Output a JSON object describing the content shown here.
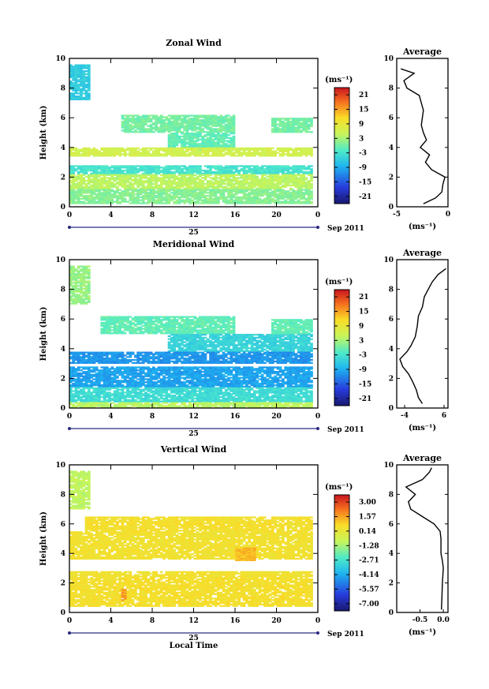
{
  "chart_data": [
    {
      "type": "heatmap",
      "title": "Zonal Wind",
      "ylabel": "Height (km)",
      "xlabel": "",
      "x_ticks": [
        "0",
        "4",
        "8",
        "12",
        "16",
        "20",
        "0"
      ],
      "y_ticks": [
        "0",
        "2",
        "4",
        "6",
        "8",
        "10"
      ],
      "xlim": [
        0,
        24
      ],
      "ylim": [
        0,
        10
      ],
      "date_day": "25",
      "date_month": "Sep 2011",
      "colorbar": {
        "unit": "(ms⁻¹)",
        "ticks": [
          "21",
          "15",
          "9",
          "3",
          "-3",
          "-9",
          "-15",
          "-21"
        ],
        "range": [
          -24,
          24
        ]
      },
      "regions": [
        {
          "x0": 0.0,
          "x1": 1.8,
          "y0": 7.2,
          "y1": 9.6,
          "v": -6
        },
        {
          "x0": 5.0,
          "x1": 16.0,
          "y0": 5.0,
          "y1": 6.2,
          "v": 0
        },
        {
          "x0": 9.5,
          "x1": 16.0,
          "y0": 3.8,
          "y1": 5.0,
          "v": -1
        },
        {
          "x0": 19.5,
          "x1": 23.5,
          "y0": 5.0,
          "y1": 6.0,
          "v": 0
        },
        {
          "x0": 0.0,
          "x1": 23.5,
          "y0": 3.4,
          "y1": 4.0,
          "v": 6
        },
        {
          "x0": 0.0,
          "x1": 23.5,
          "y0": 2.2,
          "y1": 2.8,
          "v": -3
        },
        {
          "x0": 0.0,
          "x1": 23.5,
          "y0": 1.2,
          "y1": 2.2,
          "v": 4
        },
        {
          "x0": 0.0,
          "x1": 23.5,
          "y0": 0.2,
          "y1": 1.2,
          "v": 1
        }
      ],
      "average_profile": {
        "title": "Average",
        "xlabel": "(ms⁻¹)",
        "x_ticks": [
          "-5",
          "0"
        ],
        "xlim": [
          -5,
          0
        ],
        "height": [
          0.2,
          0.6,
          1.0,
          1.5,
          2.0,
          2.5,
          3.0,
          3.5,
          4.0,
          4.5,
          5.0,
          5.5,
          6.0,
          6.5,
          7.0,
          7.5,
          8.0,
          8.5,
          9.0,
          9.3
        ],
        "values": [
          -2.4,
          -1.2,
          -0.6,
          -0.5,
          -0.3,
          -1.6,
          -2.2,
          -1.8,
          -2.7,
          -2.1,
          -2.4,
          -2.6,
          -2.5,
          -2.4,
          -2.6,
          -2.8,
          -4.0,
          -4.3,
          -3.3,
          -4.6
        ]
      }
    },
    {
      "type": "heatmap",
      "title": "Meridional Wind",
      "ylabel": "Height (km)",
      "xlabel": "",
      "x_ticks": [
        "0",
        "4",
        "8",
        "12",
        "16",
        "20",
        "0"
      ],
      "y_ticks": [
        "0",
        "2",
        "4",
        "6",
        "8",
        "10"
      ],
      "xlim": [
        0,
        24
      ],
      "ylim": [
        0,
        10
      ],
      "date_day": "25",
      "date_month": "Sep 2011",
      "colorbar": {
        "unit": "(ms⁻¹)",
        "ticks": [
          "21",
          "15",
          "9",
          "3",
          "-3",
          "-9",
          "-15",
          "-21"
        ],
        "range": [
          -24,
          24
        ]
      },
      "regions": [
        {
          "x0": 0.0,
          "x1": 1.8,
          "y0": 7.0,
          "y1": 9.6,
          "v": 2
        },
        {
          "x0": 3.0,
          "x1": 16.0,
          "y0": 5.0,
          "y1": 6.2,
          "v": -1
        },
        {
          "x0": 9.5,
          "x1": 23.5,
          "y0": 3.8,
          "y1": 5.0,
          "v": -5
        },
        {
          "x0": 19.5,
          "x1": 23.5,
          "y0": 5.0,
          "y1": 6.0,
          "v": -1
        },
        {
          "x0": 0.0,
          "x1": 23.5,
          "y0": 3.0,
          "y1": 3.8,
          "v": -11
        },
        {
          "x0": 0.0,
          "x1": 23.5,
          "y0": 1.4,
          "y1": 2.8,
          "v": -10
        },
        {
          "x0": 0.0,
          "x1": 23.5,
          "y0": 0.4,
          "y1": 1.4,
          "v": -4
        },
        {
          "x0": 0.0,
          "x1": 23.5,
          "y0": 0.0,
          "y1": 0.4,
          "v": 4
        }
      ],
      "average_profile": {
        "title": "Average",
        "xlabel": "(ms⁻¹)",
        "x_ticks": [
          "-4",
          "6"
        ],
        "xlim": [
          -6,
          7
        ],
        "height": [
          0.3,
          0.7,
          1.2,
          1.8,
          2.3,
          2.8,
          3.3,
          3.8,
          4.2,
          4.8,
          5.5,
          6.2,
          6.8,
          7.5,
          8.0,
          8.5,
          9.0,
          9.4
        ],
        "values": [
          0.5,
          -0.5,
          -1.0,
          -2.0,
          -3.0,
          -4.5,
          -5.2,
          -3.4,
          -2.4,
          -1.3,
          -0.8,
          -0.5,
          0.5,
          1.0,
          2.0,
          3.0,
          4.5,
          6.5
        ]
      }
    },
    {
      "type": "heatmap",
      "title": "Vertical Wind",
      "ylabel": "Height (km)",
      "xlabel": "Local Time",
      "x_ticks": [
        "0",
        "4",
        "8",
        "12",
        "16",
        "20",
        "0"
      ],
      "y_ticks": [
        "0",
        "2",
        "4",
        "6",
        "8",
        "10"
      ],
      "xlim": [
        0,
        24
      ],
      "ylim": [
        0,
        10
      ],
      "date_day": "25",
      "date_month": "Sep 2011",
      "colorbar": {
        "unit": "(ms⁻¹)",
        "ticks": [
          "3.00",
          "1.57",
          "0.14",
          "-1.28",
          "-2.71",
          "-4.14",
          "-5.57",
          "-7.00"
        ],
        "range": [
          -7.7,
          3.7
        ]
      },
      "regions": [
        {
          "x0": 0.0,
          "x1": 1.8,
          "y0": 7.0,
          "y1": 9.6,
          "v": -1.0
        },
        {
          "x0": 1.5,
          "x1": 23.5,
          "y0": 5.5,
          "y1": 6.5,
          "v": 0.5
        },
        {
          "x0": 0.0,
          "x1": 23.5,
          "y0": 3.6,
          "y1": 5.5,
          "v": 0.4
        },
        {
          "x0": 0.0,
          "x1": 23.5,
          "y0": 2.4,
          "y1": 2.8,
          "v": 0.4
        },
        {
          "x0": 0.0,
          "x1": 23.5,
          "y0": 0.4,
          "y1": 2.4,
          "v": 0.5
        },
        {
          "x0": 5.0,
          "x1": 5.5,
          "y0": 0.8,
          "y1": 1.6,
          "v": 1.6
        },
        {
          "x0": 16.0,
          "x1": 18.0,
          "y0": 3.5,
          "y1": 4.4,
          "v": 1.2
        }
      ],
      "average_profile": {
        "title": "Average",
        "xlabel": "(ms⁻¹)",
        "x_ticks": [
          "-0.5",
          "0.0"
        ],
        "xlim": [
          -1.0,
          0.1
        ],
        "height": [
          0.2,
          1.0,
          2.0,
          3.0,
          3.5,
          4.0,
          5.0,
          5.5,
          6.0,
          6.5,
          7.0,
          7.5,
          8.0,
          8.5,
          9.0,
          9.5,
          9.8
        ],
        "values": [
          -0.04,
          -0.03,
          -0.02,
          0.0,
          -0.02,
          -0.05,
          -0.05,
          -0.07,
          -0.2,
          -0.45,
          -0.7,
          -0.75,
          -0.6,
          -0.8,
          -0.45,
          -0.3,
          -0.25
        ]
      }
    }
  ]
}
